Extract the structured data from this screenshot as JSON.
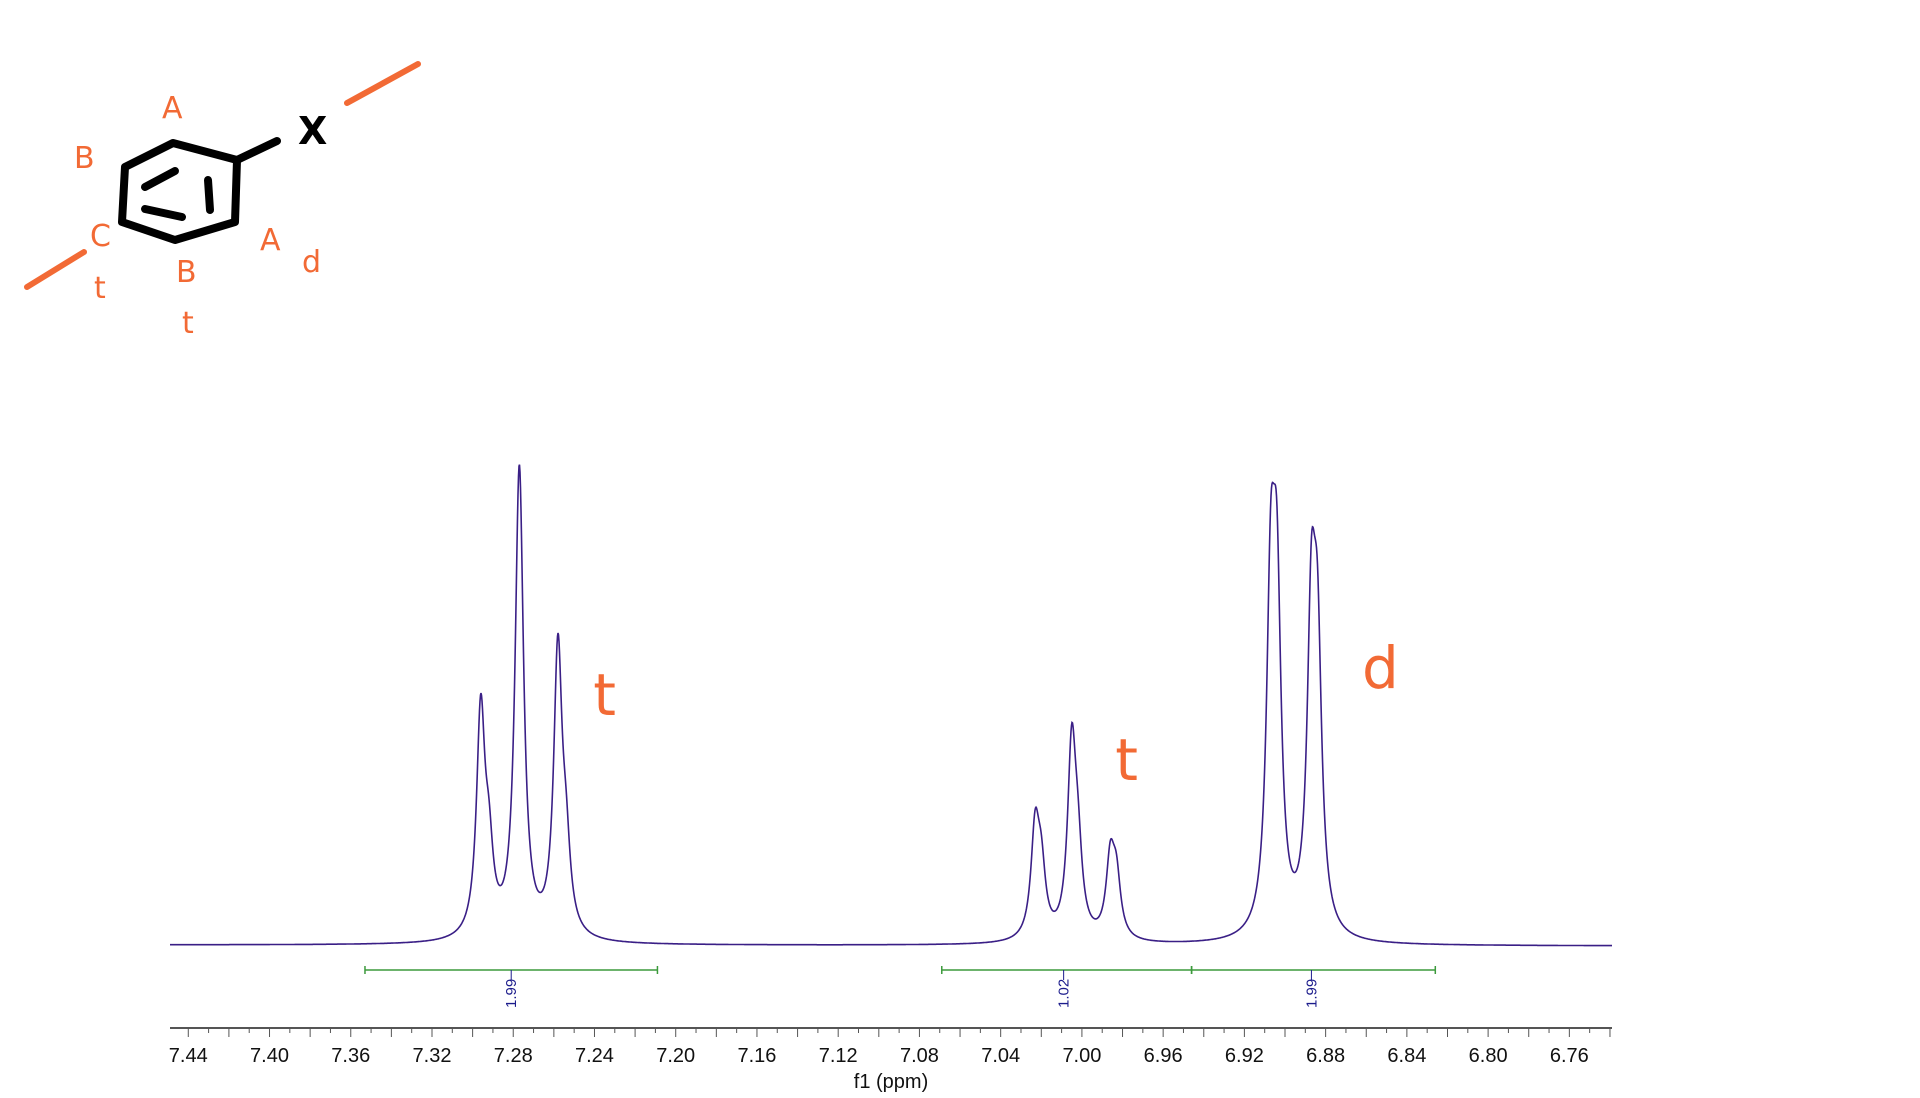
{
  "structure": {
    "substituent": "X",
    "labels": [
      "A",
      "B",
      "C",
      "t",
      "B",
      "t",
      "A",
      "d"
    ],
    "annotation_color": "#f26a35"
  },
  "chart_data": {
    "type": "line",
    "title": "",
    "xlabel": "f1 (ppm)",
    "ylabel": "",
    "xlim": [
      7.449,
      6.739
    ],
    "x_reversed": true,
    "x_ticks": [
      "7.44",
      "7.40",
      "7.36",
      "7.32",
      "7.28",
      "7.24",
      "7.20",
      "7.16",
      "7.12",
      "7.08",
      "7.04",
      "7.00",
      "6.96",
      "6.92",
      "6.88",
      "6.84",
      "6.80",
      "6.76"
    ],
    "grid": false,
    "line_color": "#3a1f86",
    "integration_color": "#3c9a3c",
    "peaks": [
      {
        "ppm": 7.296,
        "intensity": 44
      },
      {
        "ppm": 7.292,
        "intensity": 14
      },
      {
        "ppm": 7.277,
        "intensity": 93
      },
      {
        "ppm": 7.258,
        "intensity": 56
      },
      {
        "ppm": 7.254,
        "intensity": 14
      },
      {
        "ppm": 7.023,
        "intensity": 21
      },
      {
        "ppm": 7.02,
        "intensity": 12
      },
      {
        "ppm": 7.005,
        "intensity": 37
      },
      {
        "ppm": 7.002,
        "intensity": 14
      },
      {
        "ppm": 6.986,
        "intensity": 15
      },
      {
        "ppm": 6.983,
        "intensity": 11
      },
      {
        "ppm": 6.907,
        "intensity": 62
      },
      {
        "ppm": 6.904,
        "intensity": 60
      },
      {
        "ppm": 6.887,
        "intensity": 58
      },
      {
        "ppm": 6.884,
        "intensity": 50
      }
    ],
    "integrals": [
      {
        "from": 7.353,
        "to": 7.209,
        "center": 7.281,
        "value": "1.99"
      },
      {
        "from": 7.069,
        "to": 6.946,
        "center": 7.009,
        "value": "1.02"
      },
      {
        "from": 6.946,
        "to": 6.826,
        "center": 6.887,
        "value": "1.99"
      }
    ],
    "annotations": [
      {
        "text": "t",
        "ppm": 7.235
      },
      {
        "text": "t",
        "ppm": 6.978
      },
      {
        "text": "d",
        "ppm": 6.853
      }
    ]
  }
}
